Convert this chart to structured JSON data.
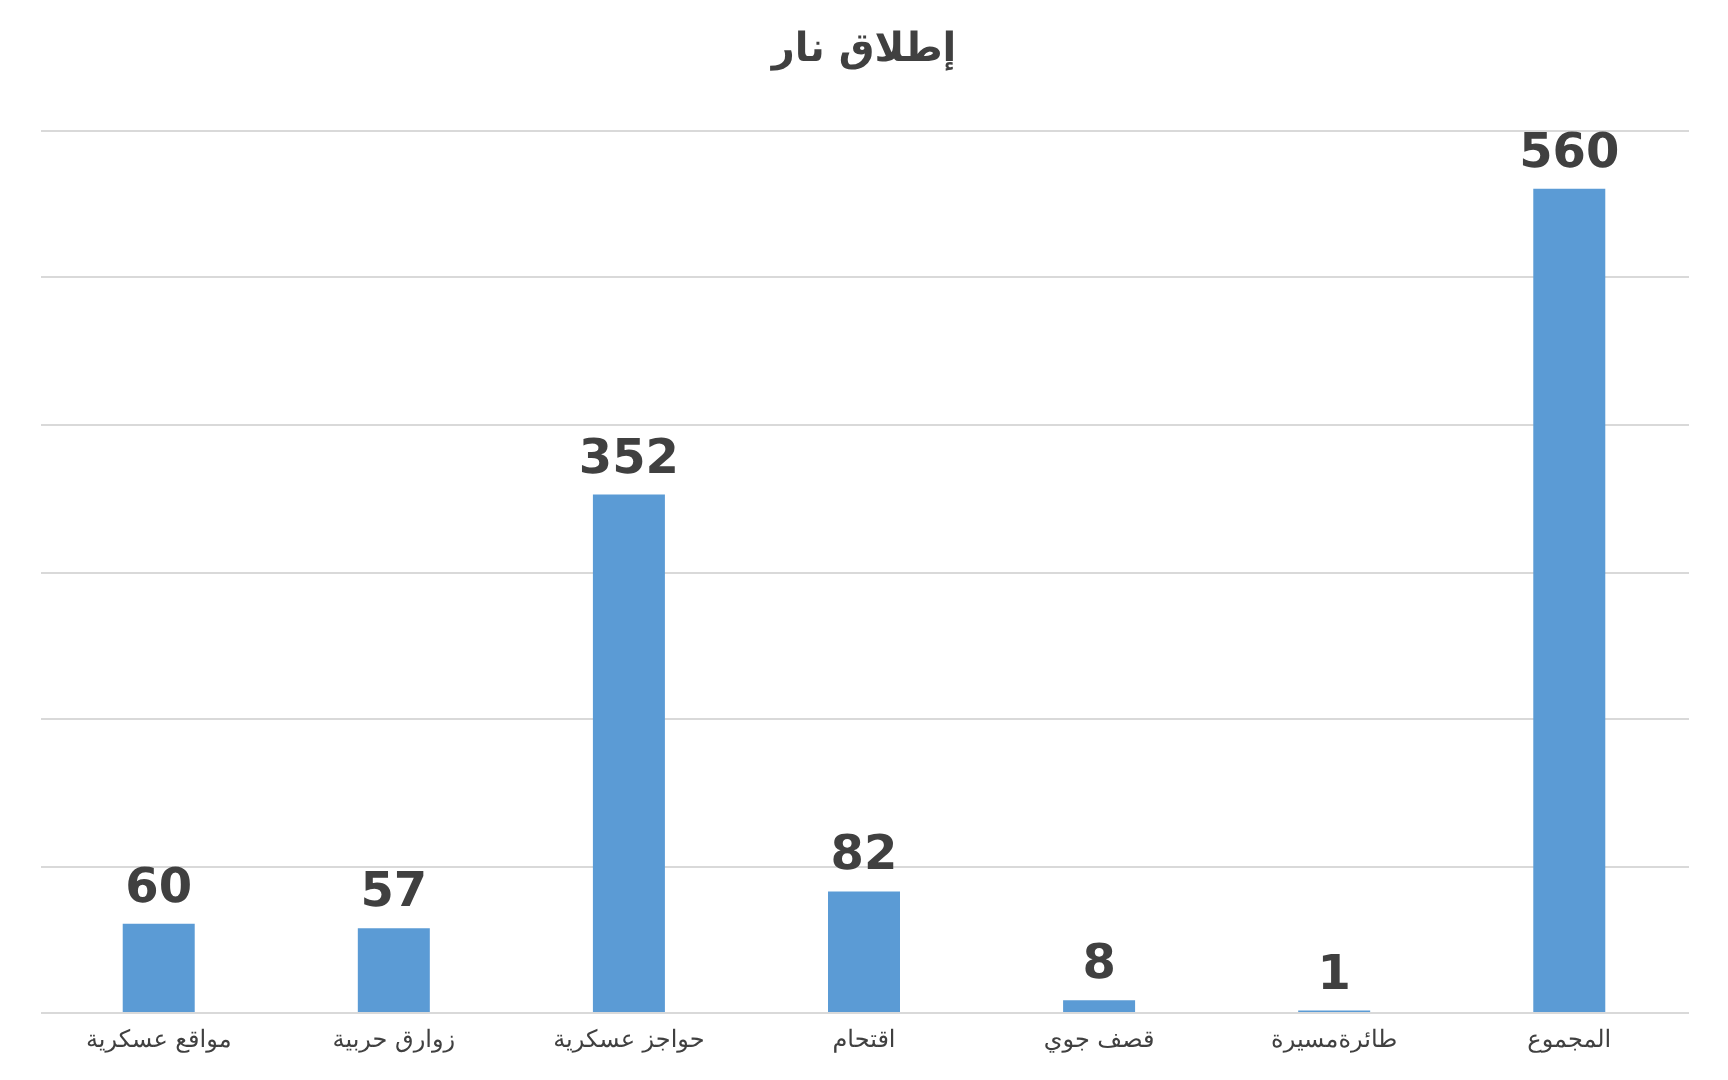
{
  "chart_data": {
    "type": "bar",
    "title": "إطلاق نار",
    "categories": [
      "مواقع عسكرية",
      "زوارق حربية",
      "حواجز عسكرية",
      "اقتحام",
      "قصف جوي",
      "طائرةمسيرة",
      "المجموع"
    ],
    "values": [
      60,
      57,
      352,
      82,
      8,
      1,
      560
    ],
    "color": "#5b9bd5",
    "ylim": [
      0,
      600
    ],
    "yticks": [
      {
        "value": 0,
        "label": null
      },
      {
        "value": 100,
        "label": null
      },
      {
        "value": 200,
        "label": null
      },
      {
        "value": 300,
        "label": null
      },
      {
        "value": 400,
        "label": null
      },
      {
        "value": 500,
        "label": null
      },
      {
        "value": 600,
        "label": null
      }
    ],
    "grid": "y",
    "tick_labels": "x",
    "data_labels": true
  }
}
